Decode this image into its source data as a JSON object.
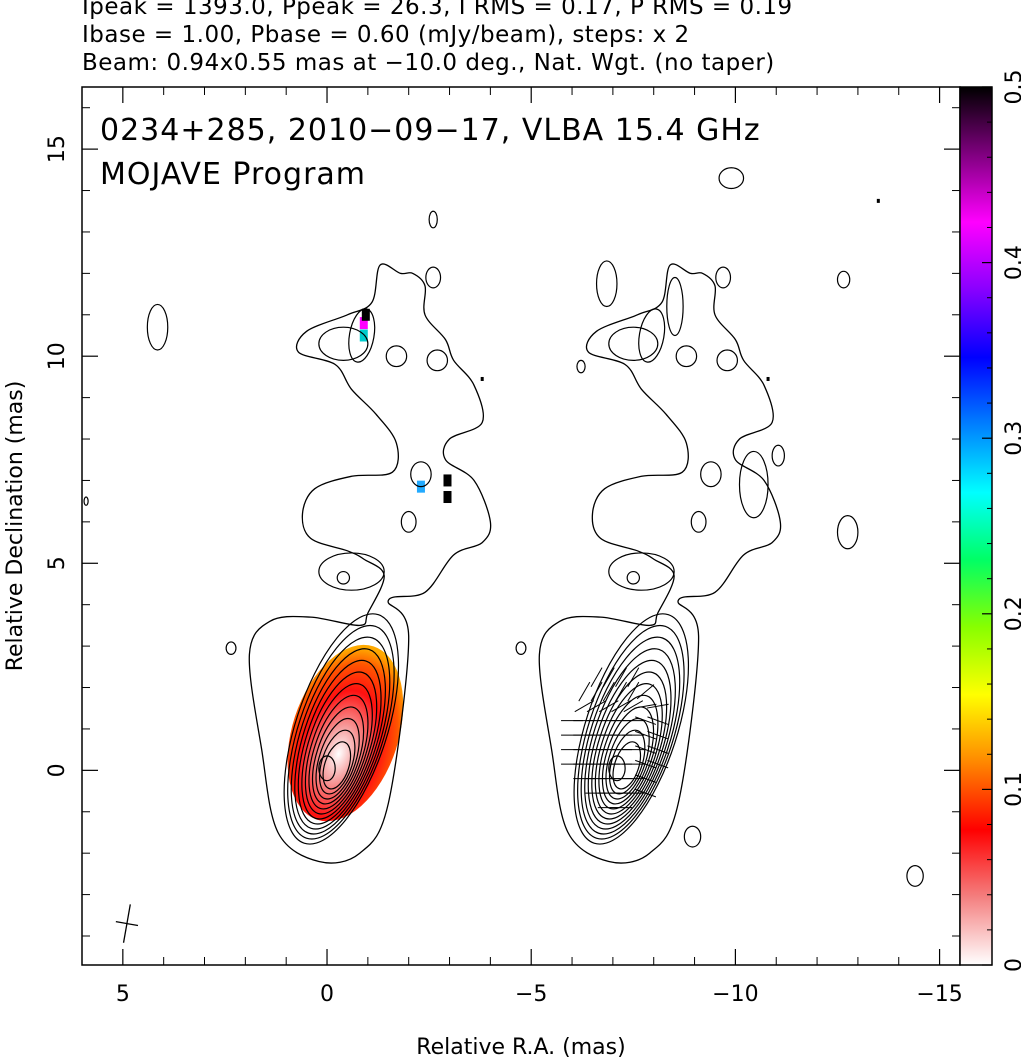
{
  "header": {
    "line1": "Ipeak = 1393.0, Ppeak = 26.3, I RMS = 0.17, P RMS = 0.19",
    "line2": "Ibase = 1.00, Pbase = 0.60 (mJy/beam), steps: x 2",
    "line3": "Beam: 0.94x0.55 mas at −10.0 deg., Nat. Wgt. (no taper)"
  },
  "chart_data": {
    "type": "heatmap",
    "title": "0234+285, 2010−09−17, VLBA 15.4 GHz",
    "subtitle": "MOJAVE Program",
    "xlabel": "Relative R.A. (mas)",
    "ylabel": "Relative Declination (mas)",
    "xlim": [
      6,
      -15.5
    ],
    "ylim": [
      -4.7,
      16.5
    ],
    "x_ticks": [
      5,
      0,
      -5,
      -10,
      -15
    ],
    "x_tick_labels": [
      "5",
      "0",
      "−5",
      "−10",
      "−15"
    ],
    "y_ticks": [
      0,
      5,
      10,
      15
    ],
    "y_tick_labels": [
      "0",
      "5",
      "10",
      "15"
    ],
    "colorbar": {
      "range": [
        0,
        0.5
      ],
      "ticks": [
        0,
        0.1,
        0.2,
        0.3,
        0.4,
        0.5
      ],
      "tick_labels": [
        "0",
        "0.1",
        "0.2",
        "0.3",
        "0.4",
        "0.5"
      ],
      "colormap": [
        "#ffffff",
        "#f48080",
        "#ff0000",
        "#ff8800",
        "#ffff00",
        "#88ff00",
        "#00ff66",
        "#00ffff",
        "#0080ff",
        "#0000ff",
        "#8800ff",
        "#ff00ff",
        "#800080",
        "#000000"
      ]
    },
    "panels": [
      {
        "name": "total intensity with fractional polarization",
        "ra_offset": 0
      },
      {
        "name": "total intensity with EVPA sticks",
        "ra_offset": -7.1
      }
    ],
    "core": {
      "ra": 0,
      "dec": 0
    },
    "beam": {
      "major_mas": 0.94,
      "minor_mas": 0.55,
      "pa_deg": -10.0
    }
  },
  "colors": {
    "contour": "#000000",
    "axis": "#000000"
  }
}
